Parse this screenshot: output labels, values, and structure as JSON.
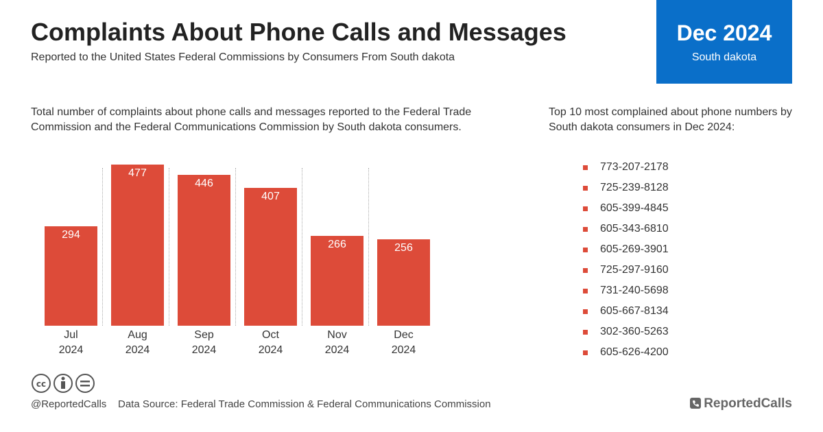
{
  "header": {
    "title": "Complaints About Phone Calls and Messages",
    "subtitle": "Reported to the United States Federal Commissions by Consumers From South dakota",
    "badge_period": "Dec 2024",
    "badge_region": "South dakota"
  },
  "chart_description": "Total number of complaints about phone calls and messages reported to the Federal Trade Commission and the Federal Communications Commission by South dakota consumers.",
  "chart_data": {
    "type": "bar",
    "categories": [
      "Jul 2024",
      "Aug 2024",
      "Sep 2024",
      "Oct 2024",
      "Nov 2024",
      "Dec 2024"
    ],
    "values": [
      294,
      477,
      446,
      407,
      266,
      256
    ],
    "color": "#dd4b39"
  },
  "top_numbers": {
    "title": "Top 10 most complained about phone numbers by South dakota consumers in Dec 2024:",
    "items": [
      "773-207-2178",
      "725-239-8128",
      "605-399-4845",
      "605-343-6810",
      "605-269-3901",
      "725-297-9160",
      "731-240-5698",
      "605-667-8134",
      "302-360-5263",
      "605-626-4200"
    ]
  },
  "footer": {
    "handle": "@ReportedCalls",
    "source": "Data Source: Federal Trade Commission & Federal Communications Commission",
    "logo": "ReportedCalls"
  }
}
